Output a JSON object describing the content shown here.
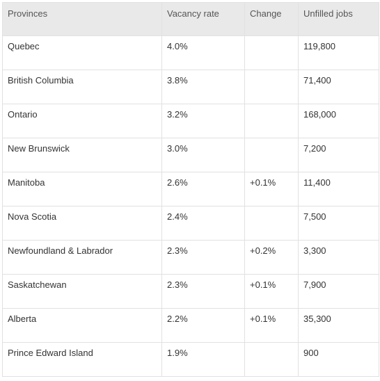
{
  "table": {
    "headers": [
      "Provinces",
      "Vacancy rate",
      "Change",
      "Unfilled jobs"
    ],
    "rows": [
      {
        "province": "Quebec",
        "rate": "4.0%",
        "change": "",
        "jobs": "119,800"
      },
      {
        "province": "British Columbia",
        "rate": "3.8%",
        "change": "",
        "jobs": "71,400"
      },
      {
        "province": "Ontario",
        "rate": "3.2%",
        "change": "",
        "jobs": "168,000"
      },
      {
        "province": "New Brunswick",
        "rate": "3.0%",
        "change": "",
        "jobs": "7,200"
      },
      {
        "province": "Manitoba",
        "rate": "2.6%",
        "change": "+0.1%",
        "jobs": "11,400"
      },
      {
        "province": "Nova Scotia",
        "rate": "2.4%",
        "change": "",
        "jobs": "7,500"
      },
      {
        "province": "Newfoundland & Labrador",
        "rate": "2.3%",
        "change": "+0.2%",
        "jobs": "3,300"
      },
      {
        "province": "Saskatchewan",
        "rate": "2.3%",
        "change": "+0.1%",
        "jobs": "7,900"
      },
      {
        "province": "Alberta",
        "rate": "2.2%",
        "change": "+0.1%",
        "jobs": "35,300"
      },
      {
        "province": "Prince Edward Island",
        "rate": "1.9%",
        "change": "",
        "jobs": "900"
      }
    ]
  }
}
